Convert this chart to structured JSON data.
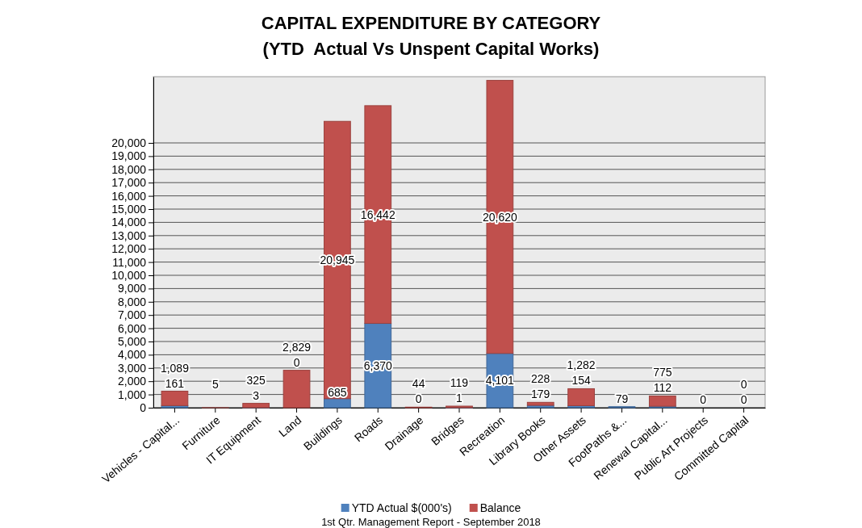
{
  "chart_data": {
    "type": "bar",
    "title": "CAPITAL EXPENDITURE BY CATEGORY",
    "subtitle": "(YTD  Actual Vs Unspent Capital Works)",
    "categories": [
      "Vehicles - Capital...",
      "Furniture",
      "IT Equipment",
      "Land",
      "Buildings",
      "Roads",
      "Drainage",
      "Bridges",
      "Recreation",
      "Library Books",
      "Other Assets",
      "FootPaths &...",
      "Renewal Capital...",
      "Public Art Projects",
      "Committed Capital"
    ],
    "stacked": true,
    "series": [
      {
        "name": "YTD Actual $(000's)",
        "color": "#4f81bd",
        "values": [
          161,
          0,
          3,
          0,
          685,
          6370,
          0,
          1,
          4101,
          179,
          154,
          79,
          112,
          0,
          0
        ],
        "value_labels": [
          "161",
          null,
          "3",
          "0",
          "685",
          "6,370",
          "0",
          "1",
          "4,101",
          "179",
          "154",
          "79",
          "112",
          "0",
          "0"
        ]
      },
      {
        "name": "Balance",
        "color": "#c0504d",
        "values": [
          1089,
          5,
          325,
          2829,
          20945,
          16442,
          44,
          119,
          20620,
          228,
          1282,
          0,
          775,
          0,
          0
        ],
        "value_labels": [
          "1,089",
          "5",
          "325",
          "2,829",
          "20,945",
          "16,442",
          "44",
          "119",
          "20,620",
          "228",
          "1,282",
          null,
          "775",
          null,
          "0"
        ]
      }
    ],
    "ylim": [
      0,
      25000
    ],
    "yticks": [
      0,
      {
        "value": 1000,
        "label": "1,000"
      },
      {
        "value": 2000,
        "label": "2,000"
      },
      {
        "value": 3000,
        "label": "3,000"
      },
      {
        "value": 4000,
        "label": "4,000"
      },
      {
        "value": 5000,
        "label": "5,000"
      },
      {
        "value": 6000,
        "label": "6,000"
      },
      {
        "value": 7000,
        "label": "7,000"
      },
      {
        "value": 8000,
        "label": "8,000"
      },
      {
        "value": 9000,
        "label": "9,000"
      },
      {
        "value": 10000,
        "label": "10,000"
      },
      {
        "value": 11000,
        "label": "11,000"
      },
      {
        "value": 12000,
        "label": "12,000"
      },
      {
        "value": 13000,
        "label": "13,000"
      },
      {
        "value": 14000,
        "label": "14,000"
      },
      {
        "value": 15000,
        "label": "15,000"
      },
      {
        "value": 16000,
        "label": "16,000"
      },
      {
        "value": 17000,
        "label": "17,000"
      },
      {
        "value": 18000,
        "label": "18,000"
      },
      {
        "value": 19000,
        "label": "19,000"
      },
      {
        "value": 20000,
        "label": "20,000"
      }
    ],
    "grid": "y",
    "legend": "bottom",
    "annotations": [
      "1st Qtr. Management Report - September 2018"
    ]
  }
}
